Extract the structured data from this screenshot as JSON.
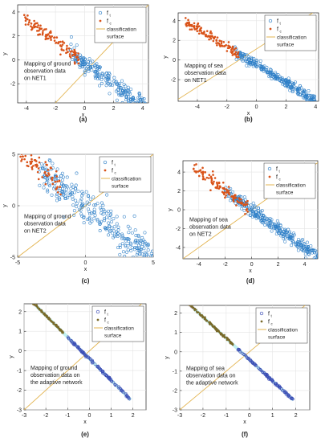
{
  "colors": {
    "true_marker": "#2e7fc7",
    "false_marker": "#d95319",
    "surface_line": "#e3b450",
    "adaptive_true_marker": "#3a4bb5",
    "adaptive_false_marker": "#7a6a2a",
    "adaptive_glow": "#8fe6e6",
    "adaptive_glow_pink": "#f0a0c8"
  },
  "chart_data": [
    {
      "panel_label": "(a)",
      "type": "scatter",
      "xlabel": "x",
      "ylabel": "y",
      "xlim": [
        -4.6,
        4.4
      ],
      "ylim": [
        -3.6,
        4.6
      ],
      "xticks": [
        -4,
        -2,
        0,
        2,
        4
      ],
      "yticks": [
        -2,
        0,
        2,
        4
      ],
      "grid": true,
      "legend_placement": "top-right",
      "legend": [
        "f",
        "f",
        "classification",
        "surface"
      ],
      "legend_subscripts": [
        "t",
        "c"
      ],
      "annotation": [
        "Mapping of ground",
        "observation data",
        "on NET1"
      ],
      "surface": {
        "from": [
          -2.0,
          -3.6
        ],
        "to": [
          4.4,
          4.6
        ]
      },
      "true_band": {
        "x_range": [
          -1.0,
          4.2
        ],
        "intercept": -0.3,
        "slope": -0.92,
        "spread": 0.45,
        "count": 230
      },
      "false_band": {
        "x_range": [
          -4.2,
          -0.4
        ],
        "intercept": -0.3,
        "slope": -0.92,
        "spread": 0.3,
        "count": 110
      },
      "adaptive": false
    },
    {
      "panel_label": "(b)",
      "type": "scatter",
      "xlabel": "x",
      "ylabel": "y",
      "xlim": [
        -5.3,
        4.2
      ],
      "ylim": [
        -4.2,
        4.8
      ],
      "xticks": [
        -4,
        -2,
        0,
        2,
        4
      ],
      "yticks": [
        -2,
        0,
        2,
        4
      ],
      "grid": true,
      "legend_placement": "top-right",
      "legend": [
        "f",
        "f",
        "classification",
        "surface"
      ],
      "legend_subscripts": [
        "t",
        "c"
      ],
      "annotation": [
        "Mapping of sea",
        "observation data",
        "on NET1"
      ],
      "surface": {
        "from": [
          -5.3,
          -4.0
        ],
        "to": [
          3.8,
          4.8
        ]
      },
      "true_band": {
        "x_range": [
          -1.5,
          4.0
        ],
        "intercept": -0.5,
        "slope": -0.92,
        "spread": 0.25,
        "count": 260
      },
      "false_band": {
        "x_range": [
          -4.8,
          -1.2
        ],
        "intercept": -0.5,
        "slope": -0.92,
        "spread": 0.22,
        "count": 120
      },
      "adaptive": false
    },
    {
      "panel_label": "(c)",
      "type": "scatter",
      "xlabel": "x",
      "ylabel": "y",
      "xlim": [
        -5,
        5
      ],
      "ylim": [
        -5,
        5
      ],
      "xticks": [
        -5,
        0,
        5
      ],
      "yticks": [
        -5,
        0,
        5
      ],
      "grid": true,
      "legend_placement": "top-right",
      "legend": [
        "f",
        "f",
        "classification",
        "surface"
      ],
      "legend_subscripts": [
        "t",
        "c"
      ],
      "annotation": [
        "Mapping of ground",
        "observation data",
        "on NET2"
      ],
      "surface": {
        "from": [
          -5,
          -5
        ],
        "to": [
          5,
          5
        ]
      },
      "true_band": {
        "x_range": [
          -3.5,
          5.0
        ],
        "intercept": 0.0,
        "slope": -1.0,
        "spread": 0.9,
        "count": 300
      },
      "false_band": {
        "x_range": [
          -4.8,
          -1.8
        ],
        "intercept": 0.2,
        "slope": -1.0,
        "spread": 0.6,
        "count": 70
      },
      "adaptive": false
    },
    {
      "panel_label": "(d)",
      "type": "scatter",
      "xlabel": "x",
      "ylabel": "y",
      "xlim": [
        -5.2,
        5.0
      ],
      "ylim": [
        -5.2,
        5.2
      ],
      "xticks": [
        -4,
        -2,
        0,
        2,
        4
      ],
      "yticks": [
        -4,
        -2,
        0,
        2,
        4
      ],
      "grid": true,
      "legend_placement": "top-right",
      "legend": [
        "f",
        "f",
        "classification",
        "surface"
      ],
      "legend_subscripts": [
        "t",
        "c"
      ],
      "annotation": [
        "Mapping of sea",
        "observation data",
        "on NET2"
      ],
      "surface": {
        "from": [
          -5.2,
          -5.2
        ],
        "to": [
          5.0,
          5.0
        ]
      },
      "true_band": {
        "x_range": [
          -2.0,
          5.0
        ],
        "intercept": 0.0,
        "slope": -1.0,
        "spread": 0.35,
        "count": 300
      },
      "false_band": {
        "x_range": [
          -4.5,
          -0.3
        ],
        "intercept": 0.0,
        "slope": -1.0,
        "spread": 0.35,
        "count": 110
      },
      "adaptive": false
    },
    {
      "panel_label": "(e)",
      "type": "scatter",
      "xlabel": "x",
      "ylabel": "y",
      "xlim": [
        -3,
        2.6
      ],
      "ylim": [
        -3,
        2.4
      ],
      "xticks": [
        -3,
        -2,
        -1,
        0,
        1,
        2
      ],
      "yticks": [
        -3,
        -2,
        -1,
        0,
        1,
        2
      ],
      "grid": true,
      "legend_placement": "top-right",
      "legend": [
        "f",
        "f",
        "classification",
        "surface"
      ],
      "legend_subscripts": [
        "t",
        "c"
      ],
      "annotation": [
        "Mapping of ground",
        "observation data on",
        "the adaptive network"
      ],
      "surface": {
        "from": [
          -3.0,
          -3.0
        ],
        "to": [
          2.4,
          2.4
        ]
      },
      "true_band": {
        "x_range": [
          -1.0,
          1.9
        ],
        "intercept": -0.4,
        "slope": -1.1,
        "spread": 0.03,
        "count": 150
      },
      "false_band": {
        "x_range": [
          -2.75,
          -1.2
        ],
        "intercept": -0.4,
        "slope": -1.1,
        "spread": 0.03,
        "count": 140
      },
      "adaptive": true
    },
    {
      "panel_label": "(f)",
      "type": "scatter",
      "xlabel": "x",
      "ylabel": "y",
      "xlim": [
        -3,
        2.6
      ],
      "ylim": [
        -3,
        2.4
      ],
      "xticks": [
        -3,
        -2,
        -1,
        0,
        1,
        2
      ],
      "yticks": [
        -3,
        -2,
        -1,
        0,
        1,
        2
      ],
      "grid": true,
      "legend_placement": "top-right",
      "legend": [
        "f",
        "f",
        "classification",
        "surface"
      ],
      "legend_subscripts": [
        "t",
        "c"
      ],
      "annotation": [
        "Mapping of sea",
        "observation data on",
        "the adaptive network"
      ],
      "surface": {
        "from": [
          -3.0,
          -3.0
        ],
        "to": [
          2.4,
          2.4
        ]
      },
      "true_band": {
        "x_range": [
          -0.5,
          1.9
        ],
        "intercept": -0.4,
        "slope": -1.1,
        "spread": 0.03,
        "count": 140
      },
      "false_band": {
        "x_range": [
          -2.7,
          -0.7
        ],
        "intercept": -0.4,
        "slope": -1.1,
        "spread": 0.03,
        "count": 160
      },
      "adaptive": true
    }
  ]
}
